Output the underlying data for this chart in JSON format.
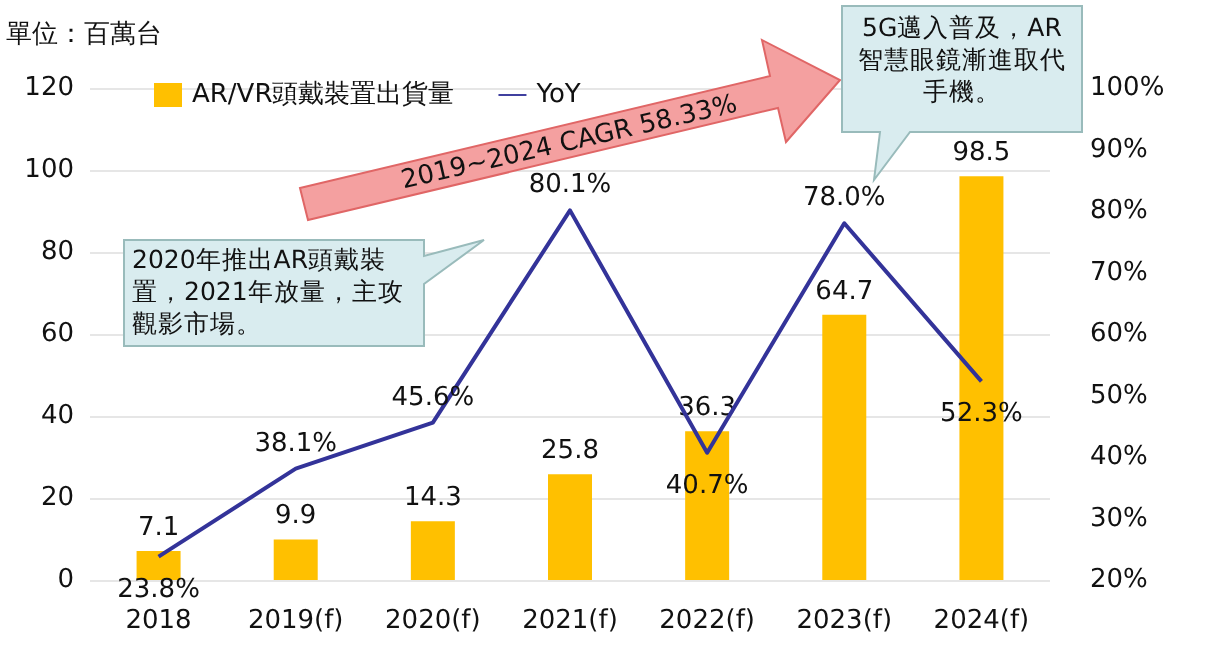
{
  "chart_data": {
    "type": "bar",
    "ylabel": "單位：百萬台",
    "categories": [
      "2018",
      "2019(f)",
      "2020(f)",
      "2021(f)",
      "2022(f)",
      "2023(f)",
      "2024(f)"
    ],
    "series": [
      {
        "name": "AR/VR頭戴裝置出貨量",
        "color": "#ffc000",
        "values": [
          7.1,
          9.9,
          14.3,
          25.8,
          36.3,
          64.7,
          98.5
        ],
        "value_labels": [
          "7.1",
          "9.9",
          "14.3",
          "25.8",
          "36.3",
          "64.7",
          "98.5"
        ]
      },
      {
        "name": "YoY",
        "type": "line",
        "axis": "y2",
        "color": "#333399",
        "values": [
          23.8,
          38.1,
          45.6,
          80.1,
          40.7,
          78.0,
          52.3
        ],
        "value_labels": [
          "23.8%",
          "38.1%",
          "45.6%",
          "80.1%",
          "40.7%",
          "78.0%",
          "52.3%"
        ]
      }
    ],
    "ylim": [
      0,
      120
    ],
    "yticks": [
      0,
      20,
      40,
      60,
      80,
      100,
      120
    ],
    "y2lim": [
      20,
      100
    ],
    "y2ticks": [
      {
        "value": 20,
        "label": "20%"
      },
      {
        "value": 30,
        "label": "30%"
      },
      {
        "value": 40,
        "label": "40%"
      },
      {
        "value": 50,
        "label": "50%"
      },
      {
        "value": 60,
        "label": "60%"
      },
      {
        "value": 70,
        "label": "70%"
      },
      {
        "value": 80,
        "label": "80%"
      },
      {
        "value": 90,
        "label": "90%"
      },
      {
        "value": 100,
        "label": "100%"
      }
    ],
    "grid": "y",
    "legend": "top",
    "marker": "none",
    "line_style": "solid",
    "annotations": [
      "2019~2024 CAGR 58.33%",
      "2020年推出AR頭戴裝置，2021年放量，主攻觀影市場。",
      "5G邁入普及，AR智慧眼鏡漸進取代手機。"
    ]
  }
}
